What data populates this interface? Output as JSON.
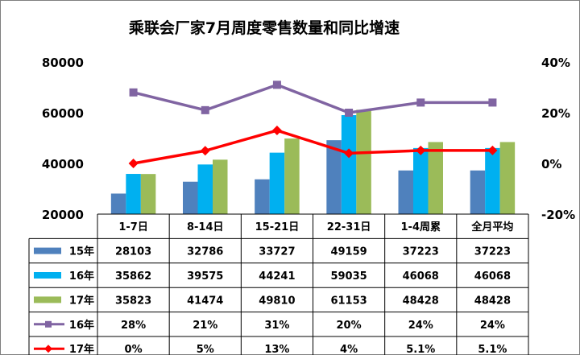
{
  "chart_data": {
    "type": "bar",
    "title": "乘联会厂家7月周度零售数量和同比增速",
    "categories": [
      "1-7日",
      "8-14日",
      "15-21日",
      "22-31日",
      "1-4周累",
      "全月平均"
    ],
    "left_axis": {
      "ylim": [
        20000,
        80000
      ],
      "ticks": [
        "20000",
        "40000",
        "60000",
        "80000"
      ],
      "tick_values": [
        20000,
        40000,
        60000,
        80000
      ]
    },
    "right_axis": {
      "ylim": [
        -20,
        40
      ],
      "ticks": [
        "-20%",
        "0%",
        "20%",
        "40%"
      ],
      "tick_values": [
        -20,
        0,
        20,
        40
      ]
    },
    "grid": false,
    "legend": "data-table",
    "bar_series": [
      {
        "name": "15年",
        "color": "#4f81bd",
        "values": [
          28103,
          32786,
          33727,
          49159,
          37223,
          37223
        ],
        "labels": [
          "28103",
          "32786",
          "33727",
          "49159",
          "37223",
          "37223"
        ]
      },
      {
        "name": "16年",
        "color": "#00b0f0",
        "values": [
          35862,
          39575,
          44241,
          59035,
          46068,
          46068
        ],
        "labels": [
          "35862",
          "39575",
          "44241",
          "59035",
          "46068",
          "46068"
        ]
      },
      {
        "name": "17年",
        "color": "#9bbb59",
        "values": [
          35823,
          41474,
          49810,
          61153,
          48428,
          48428
        ],
        "labels": [
          "35823",
          "41474",
          "49810",
          "61153",
          "48428",
          "48428"
        ]
      }
    ],
    "line_series": [
      {
        "name": "16年",
        "color": "#8064a2",
        "marker": "square",
        "values": [
          28,
          21,
          31,
          20,
          24,
          24
        ],
        "labels": [
          "28%",
          "21%",
          "31%",
          "20%",
          "24%",
          "24%"
        ]
      },
      {
        "name": "17年",
        "color": "#ff0000",
        "marker": "diamond",
        "values": [
          0,
          5,
          13,
          4,
          5.1,
          5.1
        ],
        "labels": [
          "0%",
          "5%",
          "13%",
          "4%",
          "5.1%",
          "5.1%"
        ]
      }
    ]
  }
}
